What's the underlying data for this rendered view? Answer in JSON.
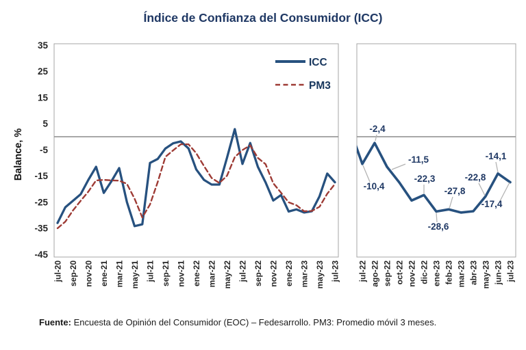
{
  "title": "Índice de Confianza del Consumidor (ICC)",
  "y_axis": {
    "label": "Balance, %"
  },
  "legend": {
    "icc_label": "ICC",
    "pm3_label": "PM3"
  },
  "footer": {
    "bold": "Fuente:",
    "text": " Encuesta de Opinión del Consumidor (EOC) – Fedesarrollo. PM3: Promedio móvil 3 meses."
  },
  "colors": {
    "icc_line": "#27517f",
    "pm3_line": "#9e3b35",
    "data_label": "#1f3864",
    "axis_text": "#262626",
    "zero_line": "#8c8c8c",
    "panel_border": "#a6a6a6",
    "leader_line": "#b3b3b3"
  },
  "chart_data": [
    {
      "type": "line",
      "panel": "left",
      "x": [
        "jul-20",
        "ago-20",
        "sep-20",
        "oct-20",
        "nov-20",
        "dic-20",
        "ene-21",
        "feb-21",
        "mar-21",
        "abr-21",
        "may-21",
        "jun-21",
        "jul-21",
        "ago-21",
        "sep-21",
        "oct-21",
        "nov-21",
        "dic-21",
        "ene-22",
        "feb-22",
        "mar-22",
        "abr-22",
        "may-22",
        "jun-22",
        "jul-22",
        "ago-22",
        "sep-22",
        "oct-22",
        "nov-22",
        "dic-22",
        "ene-23",
        "feb-23",
        "mar-23",
        "abr-23",
        "may-23",
        "jun-23",
        "jul-23"
      ],
      "x_tick_every": 2,
      "series": [
        {
          "name": "ICC",
          "style": "solid",
          "color_key": "icc_line",
          "values": [
            -33,
            -27,
            -24.5,
            -22,
            -16.5,
            -11.5,
            -21.5,
            -17,
            -12,
            -25,
            -34.2,
            -33.5,
            -10,
            -8.5,
            -4.5,
            -2.5,
            -1.8,
            -4.5,
            -12.5,
            -16.5,
            -18.3,
            -18.3,
            -8,
            2.9,
            -10.4,
            -2.4,
            -11.5,
            -17.5,
            -24.4,
            -22.3,
            -28.6,
            -27.8,
            -29,
            -28.5,
            -22.8,
            -14.1,
            -17.4
          ]
        },
        {
          "name": "PM3",
          "style": "dashed",
          "color_key": "pm3_line",
          "values": [
            -35,
            -32.5,
            -28.2,
            -24.5,
            -21,
            -16.7,
            -16.5,
            -16.7,
            -16.8,
            -18,
            -23.7,
            -30.9,
            -25.9,
            -17.3,
            -7.7,
            -5.2,
            -2.9,
            -2.9,
            -6.3,
            -11.2,
            -15.8,
            -17.7,
            -14.9,
            -7.8,
            -5.1,
            -3.3,
            -8.1,
            -10.5,
            -17.8,
            -21.4,
            -25.1,
            -26.2,
            -28.5,
            -28.4,
            -26.8,
            -21.8,
            -18.1
          ]
        }
      ],
      "ylim": [
        -45,
        35
      ],
      "yticks": [
        35,
        25,
        15,
        5,
        -5,
        -15,
        -25,
        -35,
        -45
      ],
      "ylabel": "Balance, %",
      "grid": "zero-line-only",
      "legend_position": "top-right"
    },
    {
      "type": "line",
      "panel": "right",
      "x": [
        "jul-22",
        "ago-22",
        "sep-22",
        "oct-22",
        "nov-22",
        "dic-22",
        "ene-23",
        "feb-23",
        "mar-23",
        "abr-23",
        "may-23",
        "jun-23",
        "jul-23"
      ],
      "series": [
        {
          "name": "ICC",
          "style": "solid",
          "color_key": "icc_line",
          "values": [
            -10.4,
            -2.4,
            -11.5,
            -17.5,
            -24.4,
            -22.3,
            -28.6,
            -27.8,
            -29,
            -28.5,
            -22.8,
            -14.1,
            -17.4
          ]
        }
      ],
      "point_labels": [
        {
          "index": 0,
          "text": "-10,4"
        },
        {
          "index": 1,
          "text": "-2,4"
        },
        {
          "index": 2,
          "text": "-11,5"
        },
        {
          "index": 5,
          "text": "-22,3"
        },
        {
          "index": 6,
          "text": "-28,6"
        },
        {
          "index": 7,
          "text": "-27,8"
        },
        {
          "index": 10,
          "text": "-22,8"
        },
        {
          "index": 11,
          "text": "-14,1"
        },
        {
          "index": 12,
          "text": "-17,4"
        }
      ],
      "ylim": [
        -45,
        35
      ],
      "grid": "zero-line-only"
    }
  ]
}
